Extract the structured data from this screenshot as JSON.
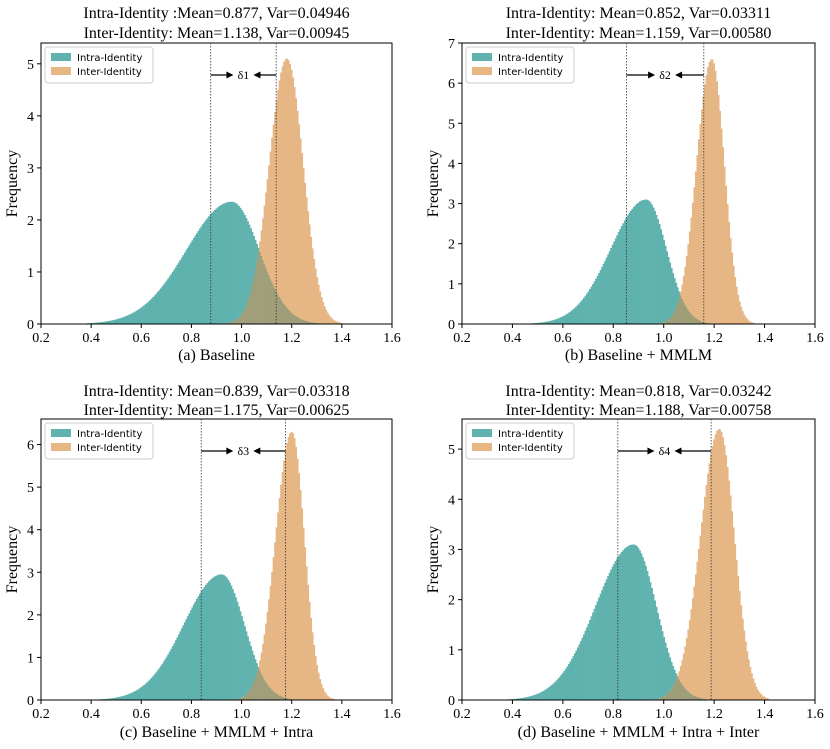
{
  "colors": {
    "intra": "#5fb2ae",
    "inter": "#e6b684",
    "overlap": "#9f9e79"
  },
  "chart_data": [
    {
      "type": "histogram",
      "title": [
        "Intra-Identity :Mean=0.877, Var=0.04946",
        "Inter-Identity: Mean=1.138, Var=0.00945"
      ],
      "caption": "(a) Baseline",
      "xlabel": "",
      "ylabel": "Frequency",
      "xlim": [
        0.2,
        1.6
      ],
      "ylim": [
        0,
        5.4
      ],
      "xticks": [
        "0.2",
        "0.4",
        "0.6",
        "0.8",
        "1.0",
        "1.2",
        "1.4",
        "1.6"
      ],
      "yticks": [
        "0",
        "1",
        "2",
        "3",
        "4",
        "5"
      ],
      "legend": [
        "Intra-Identity",
        "Inter-Identity"
      ],
      "delta_label": "δ1",
      "series": [
        {
          "name": "Intra-Identity",
          "peak_x": 0.96,
          "peak_y": 2.35,
          "sigma_left": 0.18,
          "sigma_right": 0.11,
          "min_x": 0.38,
          "max_x": 1.38,
          "mean": 0.877
        },
        {
          "name": "Inter-Identity",
          "peak_x": 1.18,
          "peak_y": 5.1,
          "sigma_left": 0.07,
          "sigma_right": 0.065,
          "min_x": 0.85,
          "max_x": 1.4,
          "mean": 1.138
        }
      ]
    },
    {
      "type": "histogram",
      "title": [
        "Intra-Identity: Mean=0.852, Var=0.03311",
        "Inter-Identity: Mean=1.159, Var=0.00580"
      ],
      "caption": "(b) Baseline + MMLM",
      "xlabel": "",
      "ylabel": "Frequency",
      "xlim": [
        0.2,
        1.6
      ],
      "ylim": [
        0,
        7.0
      ],
      "xticks": [
        "0.2",
        "0.4",
        "0.6",
        "0.8",
        "1.0",
        "1.2",
        "1.4",
        "1.6"
      ],
      "yticks": [
        "0",
        "1",
        "2",
        "3",
        "4",
        "5",
        "6",
        "7"
      ],
      "legend": [
        "Intra-Identity",
        "Inter-Identity"
      ],
      "delta_label": "δ2",
      "series": [
        {
          "name": "Intra-Identity",
          "peak_x": 0.93,
          "peak_y": 3.1,
          "sigma_left": 0.14,
          "sigma_right": 0.08,
          "min_x": 0.38,
          "max_x": 1.25,
          "mean": 0.852
        },
        {
          "name": "Inter-Identity",
          "peak_x": 1.19,
          "peak_y": 6.6,
          "sigma_left": 0.06,
          "sigma_right": 0.05,
          "min_x": 0.9,
          "max_x": 1.38,
          "mean": 1.159
        }
      ]
    },
    {
      "type": "histogram",
      "title": [
        "Intra-Identity: Mean=0.839, Var=0.03318",
        "Inter-Identity: Mean=1.175, Var=0.00625"
      ],
      "caption": "(c) Baseline + MMLM + Intra",
      "xlabel": "",
      "ylabel": "Frequency",
      "xlim": [
        0.2,
        1.6
      ],
      "ylim": [
        0,
        6.6
      ],
      "xticks": [
        "0.2",
        "0.4",
        "0.6",
        "0.8",
        "1.0",
        "1.2",
        "1.4",
        "1.6"
      ],
      "yticks": [
        "0",
        "1",
        "2",
        "3",
        "4",
        "5",
        "6"
      ],
      "legend": [
        "Intra-Identity",
        "Inter-Identity"
      ],
      "delta_label": "δ3",
      "series": [
        {
          "name": "Intra-Identity",
          "peak_x": 0.92,
          "peak_y": 2.95,
          "sigma_left": 0.15,
          "sigma_right": 0.09,
          "min_x": 0.4,
          "max_x": 1.28,
          "mean": 0.839
        },
        {
          "name": "Inter-Identity",
          "peak_x": 1.2,
          "peak_y": 6.3,
          "sigma_left": 0.065,
          "sigma_right": 0.05,
          "min_x": 0.92,
          "max_x": 1.38,
          "mean": 1.175
        }
      ]
    },
    {
      "type": "histogram",
      "title": [
        "Intra-Identity: Mean=0.818, Var=0.03242",
        "Inter-Identity: Mean=1.188, Var=0.00758"
      ],
      "caption": "(d) Baseline + MMLM + Intra + Inter",
      "xlabel": "",
      "ylabel": "Frequency",
      "xlim": [
        0.2,
        1.6
      ],
      "ylim": [
        0,
        5.6
      ],
      "xticks": [
        "0.2",
        "0.4",
        "0.6",
        "0.8",
        "1.0",
        "1.2",
        "1.4",
        "1.6"
      ],
      "yticks": [
        "0",
        "1",
        "2",
        "3",
        "4",
        "5"
      ],
      "legend": [
        "Intra-Identity",
        "Inter-Identity"
      ],
      "delta_label": "δ4",
      "series": [
        {
          "name": "Intra-Identity",
          "peak_x": 0.88,
          "peak_y": 3.1,
          "sigma_left": 0.15,
          "sigma_right": 0.09,
          "min_x": 0.38,
          "max_x": 1.25,
          "mean": 0.818
        },
        {
          "name": "Inter-Identity",
          "peak_x": 1.22,
          "peak_y": 5.4,
          "sigma_left": 0.075,
          "sigma_right": 0.06,
          "min_x": 0.92,
          "max_x": 1.42,
          "mean": 1.188
        }
      ]
    }
  ]
}
